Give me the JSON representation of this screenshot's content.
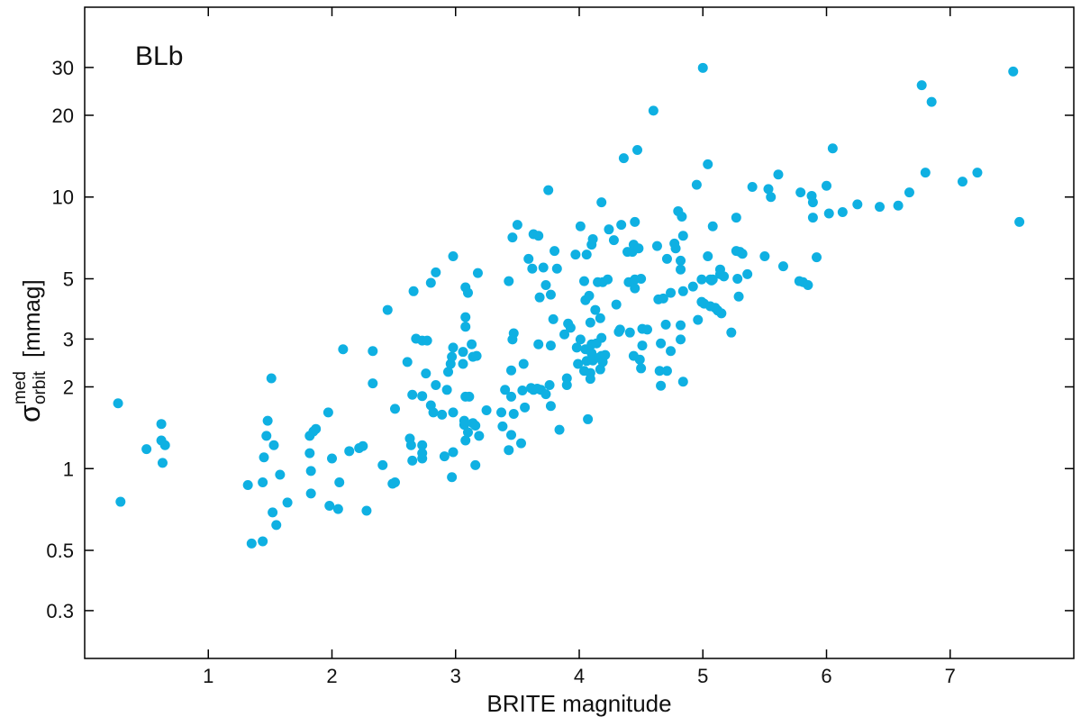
{
  "chart_data": {
    "type": "scatter",
    "annotation": "BLb",
    "xlabel": "BRITE magnitude",
    "ylabel": {
      "symbol": "σ",
      "sup": "med",
      "sub": "orbit",
      "unit": "[mmag]"
    },
    "color": "#0fb0e2",
    "yscale": "log",
    "xlim": [
      0,
      8
    ],
    "ylim": [
      0.2,
      50
    ],
    "xticks": [
      1,
      2,
      3,
      4,
      5,
      6,
      7
    ],
    "yticks": [
      0.3,
      0.5,
      1,
      2,
      3,
      5,
      10,
      20,
      30
    ],
    "x": [
      0.27,
      0.29,
      0.5,
      0.62,
      0.62,
      0.65,
      0.63,
      1.32,
      1.35,
      1.44,
      1.44,
      1.45,
      1.47,
      1.48,
      1.51,
      1.53,
      1.52,
      1.55,
      1.58,
      1.64,
      1.82,
      1.82,
      1.83,
      1.83,
      1.85,
      1.87,
      1.97,
      1.98,
      2.0,
      2.05,
      2.06,
      2.09,
      2.14,
      2.22,
      2.25,
      2.28,
      2.33,
      2.33,
      2.41,
      2.45,
      2.49,
      2.51,
      2.51,
      2.61,
      2.63,
      2.64,
      2.65,
      2.65,
      2.66,
      2.68,
      2.73,
      2.77,
      2.76,
      2.73,
      2.73,
      2.73,
      2.73,
      2.8,
      2.8,
      2.82,
      2.84,
      2.84,
      2.89,
      2.91,
      2.93,
      2.94,
      2.96,
      2.97,
      2.98,
      2.98,
      2.98,
      2.97,
      2.98,
      3.06,
      3.06,
      3.08,
      3.08,
      3.08,
      3.08,
      3.07,
      3.07,
      3.08,
      3.1,
      3.1,
      3.11,
      3.13,
      3.14,
      3.14,
      3.16,
      3.16,
      3.18,
      3.19,
      3.17,
      3.25,
      3.37,
      3.38,
      3.4,
      3.43,
      3.43,
      3.45,
      3.45,
      3.45,
      3.46,
      3.47,
      3.47,
      3.46,
      3.5,
      3.53,
      3.54,
      3.55,
      3.56,
      3.59,
      3.61,
      3.62,
      3.63,
      3.63,
      3.66,
      3.67,
      3.67,
      3.68,
      3.69,
      3.71,
      3.73,
      3.73,
      3.75,
      3.76,
      3.77,
      3.77,
      3.77,
      3.79,
      3.8,
      3.82,
      3.84,
      3.88,
      3.9,
      3.9,
      3.91,
      3.93,
      3.97,
      3.99,
      3.98,
      4.01,
      4.01,
      4.04,
      4.04,
      4.05,
      4.05,
      4.06,
      4.06,
      4.07,
      4.08,
      4.09,
      4.09,
      4.09,
      4.1,
      4.1,
      4.1,
      4.11,
      4.11,
      4.13,
      4.14,
      4.15,
      4.16,
      4.17,
      4.17,
      4.18,
      4.18,
      4.18,
      4.19,
      4.19,
      4.21,
      4.23,
      4.24,
      4.28,
      4.3,
      4.32,
      4.33,
      4.34,
      4.36,
      4.39,
      4.4,
      4.41,
      4.43,
      4.44,
      4.44,
      4.45,
      4.45,
      4.45,
      4.47,
      4.48,
      4.49,
      4.5,
      4.5,
      4.51,
      4.51,
      4.55,
      4.6,
      4.63,
      4.64,
      4.65,
      4.66,
      4.66,
      4.68,
      4.7,
      4.71,
      4.71,
      4.74,
      4.74,
      4.77,
      4.78,
      4.8,
      4.82,
      4.82,
      4.83,
      4.84,
      4.84,
      4.84,
      4.82,
      4.82,
      4.92,
      4.95,
      4.96,
      4.99,
      4.99,
      5.0,
      5.01,
      5.04,
      5.04,
      5.06,
      5.06,
      5.07,
      5.08,
      5.08,
      5.1,
      5.12,
      5.14,
      5.14,
      5.15,
      5.17,
      5.23,
      5.27,
      5.27,
      5.28,
      5.29,
      5.3,
      5.32,
      5.36,
      5.4,
      5.5,
      5.53,
      5.55,
      5.61,
      5.65,
      5.78,
      5.79,
      5.81,
      5.85,
      5.88,
      5.89,
      5.89,
      5.92,
      6.0,
      6.02,
      6.05,
      6.13,
      6.25,
      6.43,
      6.58,
      6.67,
      6.77,
      6.8,
      6.85,
      7.1,
      7.22,
      7.51,
      7.56
    ],
    "y": [
      1.74,
      0.755,
      1.18,
      1.46,
      1.27,
      1.22,
      1.05,
      0.87,
      0.53,
      0.54,
      0.89,
      1.1,
      1.32,
      1.5,
      2.15,
      1.22,
      0.69,
      0.62,
      0.95,
      0.75,
      1.14,
      1.32,
      0.98,
      0.81,
      1.37,
      1.4,
      1.61,
      0.73,
      1.09,
      0.71,
      0.89,
      2.75,
      1.16,
      1.19,
      1.21,
      0.7,
      2.71,
      2.06,
      1.03,
      3.84,
      0.88,
      0.89,
      1.66,
      2.47,
      1.29,
      1.22,
      1.07,
      1.87,
      4.5,
      3.01,
      2.96,
      2.96,
      2.24,
      1.85,
      1.09,
      1.22,
      1.14,
      4.83,
      1.71,
      1.61,
      5.28,
      2.03,
      1.58,
      1.11,
      1.95,
      2.27,
      2.43,
      2.58,
      2.79,
      1.15,
      6.05,
      0.93,
      1.61,
      2.43,
      2.69,
      3.61,
      3.33,
      4.65,
      1.84,
      1.5,
      1.45,
      1.27,
      1.36,
      4.44,
      1.84,
      2.87,
      2.58,
      1.47,
      1.03,
      1.44,
      5.25,
      1.32,
      2.6,
      1.64,
      1.61,
      1.43,
      1.95,
      4.9,
      1.17,
      2.3,
      1.84,
      1.33,
      7.1,
      1.59,
      3.15,
      2.99,
      7.9,
      1.24,
      1.94,
      2.43,
      1.68,
      5.92,
      1.98,
      5.45,
      7.3,
      1.95,
      1.97,
      7.2,
      2.87,
      4.27,
      1.95,
      5.5,
      1.88,
      4.74,
      10.6,
      2.03,
      1.7,
      2.84,
      4.37,
      3.55,
      6.33,
      5.45,
      1.39,
      3.12,
      2.15,
      2.03,
      3.42,
      3.3,
      6.14,
      2.43,
      2.79,
      7.8,
      2.99,
      4.9,
      2.29,
      2.75,
      4.17,
      6.14,
      2.49,
      1.52,
      4.33,
      2.14,
      3.45,
      2.25,
      2.66,
      2.87,
      6.68,
      7.0,
      2.5,
      3.84,
      2.89,
      4.86,
      2.56,
      3.58,
      2.32,
      3.03,
      9.56,
      2.6,
      4.86,
      2.47,
      2.62,
      4.97,
      7.6,
      6.94,
      4.02,
      3.19,
      3.25,
      7.9,
      13.9,
      6.28,
      4.86,
      3.17,
      6.28,
      6.68,
      2.6,
      8.1,
      4.97,
      4.61,
      14.9,
      6.47,
      2.52,
      2.34,
      5.0,
      2.84,
      3.27,
      3.25,
      20.8,
      6.6,
      4.2,
      2.29,
      2.02,
      2.89,
      4.23,
      3.39,
      5.92,
      2.29,
      2.71,
      4.44,
      6.74,
      6.47,
      8.87,
      5.83,
      3.37,
      8.47,
      7.2,
      2.09,
      4.5,
      5.41,
      2.99,
      4.68,
      11.1,
      3.53,
      4.97,
      4.11,
      29.9,
      4.05,
      6.05,
      13.2,
      4.97,
      3.96,
      4.93,
      7.8,
      4.97,
      3.91,
      3.82,
      5.41,
      5.2,
      3.73,
      5.1,
      3.17,
      8.4,
      6.33,
      5.0,
      4.3,
      6.28,
      6.18,
      5.2,
      10.9,
      6.05,
      10.7,
      10.0,
      12.1,
      5.56,
      4.9,
      10.4,
      4.86,
      4.74,
      10.1,
      8.4,
      9.56,
      6.0,
      11.0,
      8.7,
      15.1,
      8.8,
      9.4,
      9.2,
      9.3,
      10.4,
      25.8,
      12.3,
      22.4,
      11.4,
      12.3,
      29.0,
      8.1
    ]
  }
}
